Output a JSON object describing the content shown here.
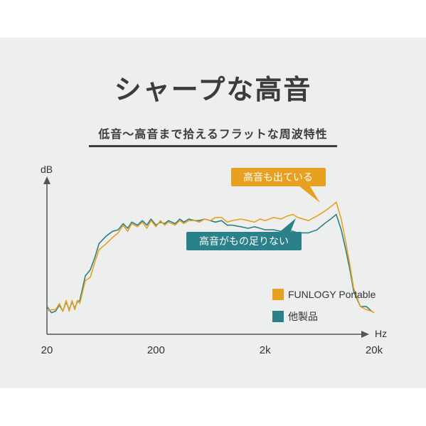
{
  "title": "シャープな高音",
  "subtitle": "低音〜高音まで拾えるフラットな周波特性",
  "colors": {
    "orange": "#e8a020",
    "teal": "#2a8189",
    "axis": "#555555",
    "background": "#edefee"
  },
  "chart_data": {
    "type": "line",
    "xscale": "log",
    "xlim": [
      20,
      20000
    ],
    "xlabel": "Hz",
    "ylabel": "dB",
    "xticks": [
      {
        "value": 20,
        "label": "20"
      },
      {
        "value": 200,
        "label": "200"
      },
      {
        "value": 2000,
        "label": "2k"
      },
      {
        "value": 20000,
        "label": "20k"
      }
    ],
    "ylim": [
      0,
      100
    ],
    "grid": false,
    "legend_position": "bottom-right",
    "annotations": [
      "高音も出ている",
      "高音がもの足りない"
    ],
    "series": [
      {
        "name": "FUNLOGY Portable",
        "color": "#e8a020",
        "x": [
          20,
          22,
          24,
          26,
          28,
          30,
          32,
          34,
          36,
          38,
          40,
          45,
          50,
          55,
          60,
          70,
          80,
          90,
          100,
          110,
          120,
          135,
          150,
          165,
          180,
          200,
          220,
          240,
          260,
          280,
          300,
          330,
          360,
          400,
          450,
          500,
          560,
          630,
          700,
          800,
          900,
          1000,
          1200,
          1400,
          1600,
          1800,
          2000,
          2400,
          2800,
          3200,
          3600,
          4000,
          5000,
          6000,
          7000,
          8000,
          9000,
          10000,
          11000,
          12000,
          13000,
          15000,
          17000,
          19000,
          20000
        ],
        "values": [
          15,
          16,
          16,
          20,
          15,
          22,
          15,
          22,
          16,
          22,
          20,
          35,
          37,
          47,
          55,
          59,
          63,
          66,
          71,
          67,
          72,
          70,
          73,
          69,
          74,
          70,
          74,
          71,
          73,
          72,
          71,
          74,
          72,
          74,
          74,
          73,
          75,
          74,
          76,
          76,
          73,
          74,
          75,
          74,
          73,
          75,
          74,
          76,
          75,
          77,
          78,
          76,
          74,
          77,
          80,
          83,
          86,
          75,
          60,
          45,
          30,
          18,
          16,
          15,
          14
        ]
      },
      {
        "name": "他製品",
        "color": "#2a8189",
        "x": [
          20,
          22,
          24,
          26,
          28,
          30,
          32,
          34,
          36,
          38,
          40,
          45,
          50,
          55,
          60,
          70,
          80,
          90,
          100,
          110,
          120,
          135,
          150,
          165,
          180,
          200,
          220,
          240,
          260,
          280,
          300,
          330,
          360,
          400,
          450,
          500,
          560,
          630,
          700,
          800,
          900,
          1000,
          1200,
          1400,
          1600,
          1800,
          2000,
          2400,
          2800,
          3200,
          3600,
          4000,
          5000,
          6000,
          7000,
          8000,
          9000,
          10000,
          11000,
          12000,
          13000,
          15000,
          17000,
          19000,
          20000
        ],
        "values": [
          18,
          14,
          15,
          19,
          15,
          21,
          16,
          21,
          17,
          21,
          22,
          38,
          42,
          50,
          59,
          64,
          67,
          68,
          72,
          69,
          73,
          71,
          74,
          71,
          75,
          71,
          73,
          72,
          74,
          73,
          72,
          75,
          73,
          75,
          74,
          74,
          75,
          74,
          73,
          74,
          71,
          71,
          70,
          69,
          70,
          69,
          68,
          68,
          67,
          68,
          67,
          66,
          66,
          68,
          72,
          75,
          78,
          68,
          55,
          42,
          28,
          18,
          18,
          15,
          14
        ]
      }
    ]
  }
}
